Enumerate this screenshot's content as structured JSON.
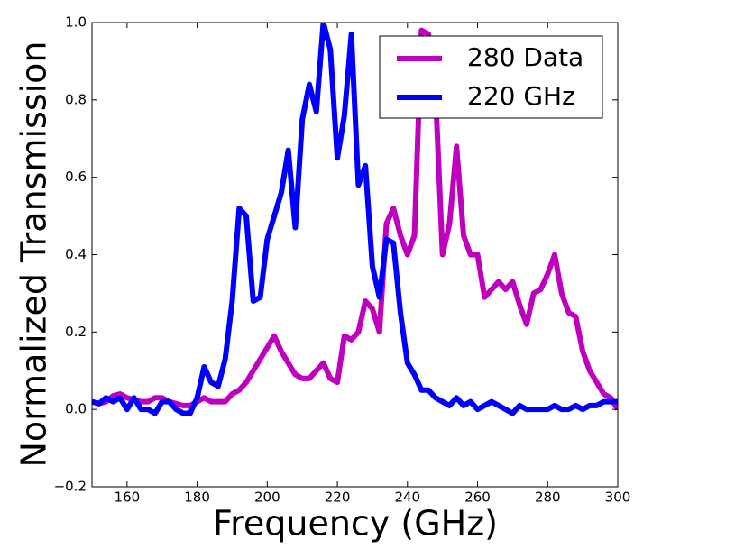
{
  "chart_data": {
    "type": "line",
    "x_label": "Frequency (GHz)",
    "y_label": "Normalized Transmission",
    "x": [
      150,
      152,
      154,
      156,
      158,
      160,
      162,
      164,
      166,
      168,
      170,
      172,
      174,
      176,
      178,
      180,
      182,
      184,
      186,
      188,
      190,
      192,
      194,
      196,
      198,
      200,
      202,
      204,
      206,
      208,
      210,
      212,
      214,
      216,
      218,
      220,
      222,
      224,
      226,
      228,
      230,
      232,
      234,
      236,
      238,
      240,
      242,
      244,
      246,
      248,
      250,
      252,
      254,
      256,
      258,
      260,
      262,
      264,
      266,
      268,
      270,
      272,
      274,
      276,
      278,
      280,
      282,
      284,
      286,
      288,
      290,
      292,
      294,
      296,
      298,
      300
    ],
    "series": [
      {
        "name": "280 Data",
        "color": "#bf00bf",
        "values": [
          0.02,
          0.015,
          0.02,
          0.035,
          0.04,
          0.03,
          0.025,
          0.02,
          0.02,
          0.03,
          0.03,
          0.02,
          0.015,
          0.01,
          0.01,
          0.02,
          0.03,
          0.02,
          0.02,
          0.02,
          0.04,
          0.05,
          0.07,
          0.1,
          0.13,
          0.16,
          0.19,
          0.15,
          0.12,
          0.09,
          0.08,
          0.08,
          0.1,
          0.12,
          0.08,
          0.07,
          0.19,
          0.18,
          0.2,
          0.28,
          0.26,
          0.2,
          0.48,
          0.52,
          0.45,
          0.4,
          0.45,
          0.98,
          0.97,
          0.82,
          0.4,
          0.48,
          0.68,
          0.45,
          0.4,
          0.4,
          0.29,
          0.31,
          0.33,
          0.31,
          0.33,
          0.27,
          0.22,
          0.3,
          0.31,
          0.35,
          0.4,
          0.3,
          0.25,
          0.24,
          0.15,
          0.1,
          0.07,
          0.04,
          0.03,
          0.0
        ]
      },
      {
        "name": "220 GHz",
        "color": "#0000ff",
        "values": [
          0.02,
          0.015,
          0.03,
          0.02,
          0.03,
          0.0,
          0.03,
          0.0,
          0.0,
          -0.01,
          0.02,
          0.02,
          0.0,
          -0.01,
          -0.01,
          0.03,
          0.11,
          0.07,
          0.06,
          0.13,
          0.28,
          0.52,
          0.5,
          0.28,
          0.29,
          0.44,
          0.5,
          0.56,
          0.67,
          0.47,
          0.75,
          0.84,
          0.77,
          1.0,
          0.93,
          0.65,
          0.76,
          0.97,
          0.58,
          0.63,
          0.37,
          0.29,
          0.44,
          0.43,
          0.25,
          0.12,
          0.09,
          0.05,
          0.05,
          0.03,
          0.02,
          0.01,
          0.03,
          0.01,
          0.02,
          0.0,
          0.01,
          0.02,
          0.01,
          0.0,
          -0.01,
          0.01,
          0.0,
          0.0,
          0.0,
          0.0,
          0.01,
          0.0,
          0.0,
          0.01,
          0.0,
          0.01,
          0.01,
          0.02,
          0.02,
          0.02
        ]
      }
    ],
    "xlim": [
      150,
      300
    ],
    "xticks": [
      160,
      180,
      200,
      220,
      240,
      260,
      280,
      300
    ],
    "ylim": [
      -0.2,
      1.0
    ],
    "yticks": [
      {
        "value": -0.2,
        "label": "−0.2"
      },
      {
        "value": 0,
        "label": "0.0"
      },
      0.2,
      0.4,
      0.6,
      0.8,
      {
        "value": 1,
        "label": "1.0"
      }
    ],
    "legend": "upper right",
    "grid": false
  }
}
